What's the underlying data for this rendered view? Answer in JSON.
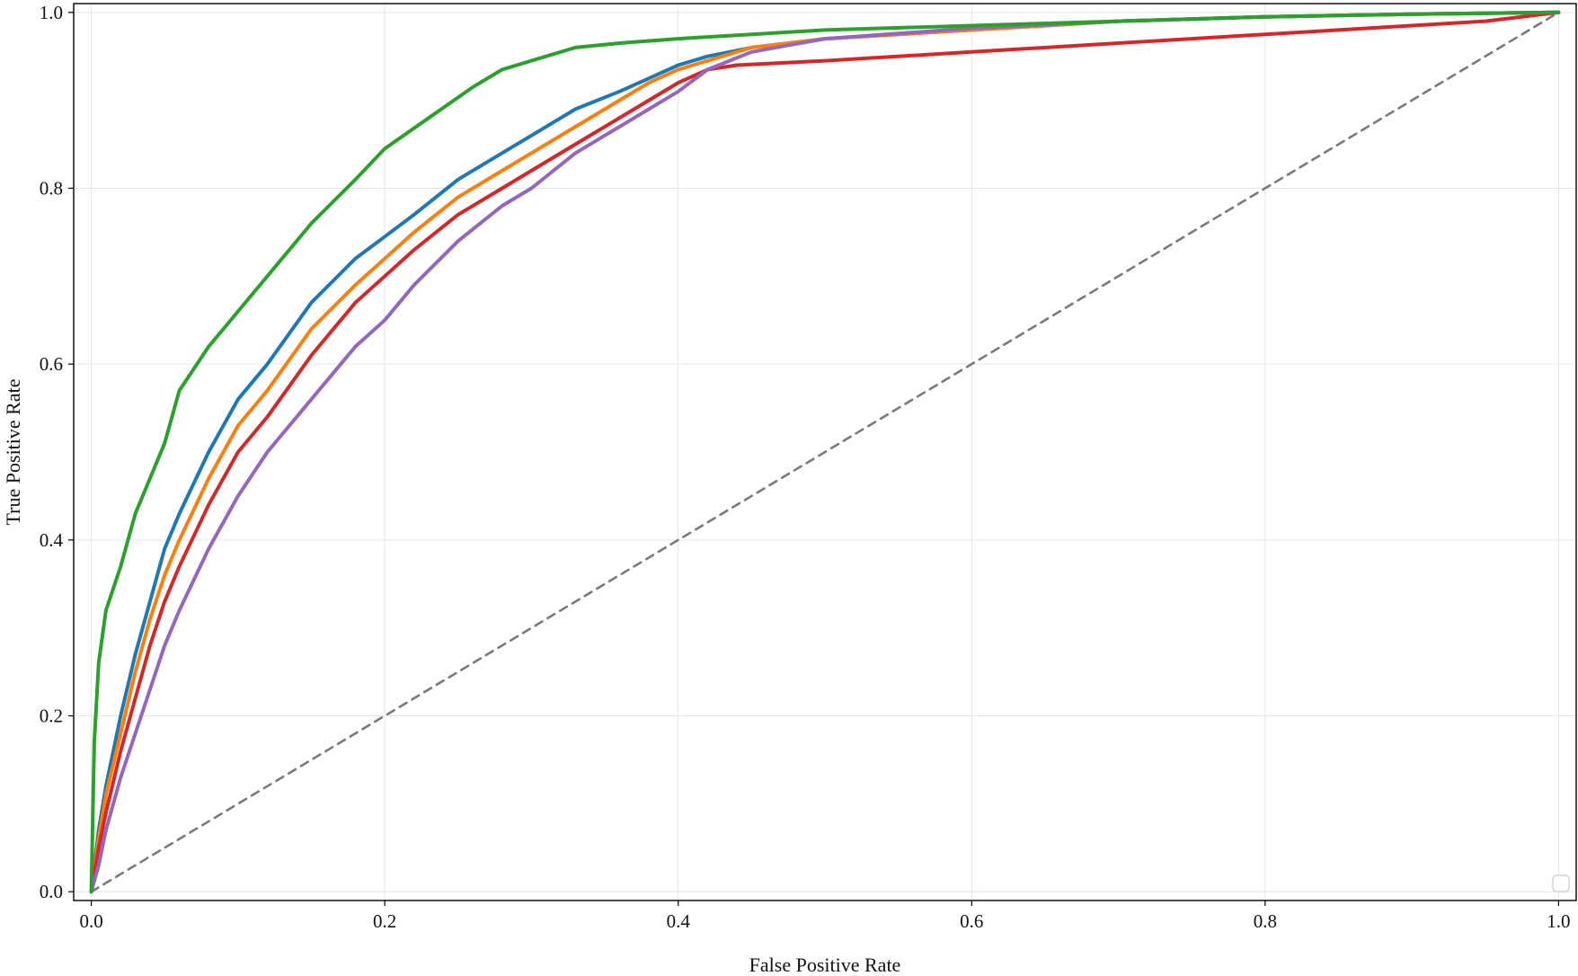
{
  "chart_data": {
    "type": "line",
    "title": "",
    "xlabel": "False Positive Rate",
    "ylabel": "True Positive Rate",
    "xlim": [
      -0.012,
      1.012
    ],
    "ylim": [
      -0.01,
      1.01
    ],
    "x_ticks": [
      "0.0",
      "0.2",
      "0.4",
      "0.6",
      "0.8",
      "1.0"
    ],
    "y_ticks": [
      "0.0",
      "0.2",
      "0.4",
      "0.6",
      "0.8",
      "1.0"
    ],
    "grid": true,
    "legend": "lower-right (empty)",
    "series": [
      {
        "color": "#1f77b4",
        "x": [
          0,
          0.005,
          0.01,
          0.02,
          0.03,
          0.04,
          0.05,
          0.06,
          0.08,
          0.1,
          0.12,
          0.15,
          0.18,
          0.2,
          0.22,
          0.25,
          0.28,
          0.3,
          0.33,
          0.36,
          0.38,
          0.4,
          0.42,
          0.45,
          0.5,
          0.6,
          0.7,
          0.8,
          0.9,
          1.0
        ],
        "y": [
          0,
          0.07,
          0.12,
          0.2,
          0.27,
          0.33,
          0.39,
          0.43,
          0.5,
          0.56,
          0.6,
          0.67,
          0.72,
          0.745,
          0.77,
          0.81,
          0.84,
          0.86,
          0.89,
          0.91,
          0.925,
          0.94,
          0.95,
          0.96,
          0.97,
          0.98,
          0.99,
          0.995,
          0.998,
          1.0
        ]
      },
      {
        "color": "#ff7f0e",
        "x": [
          0,
          0.005,
          0.01,
          0.02,
          0.03,
          0.04,
          0.05,
          0.06,
          0.08,
          0.1,
          0.12,
          0.15,
          0.18,
          0.2,
          0.22,
          0.25,
          0.28,
          0.3,
          0.33,
          0.36,
          0.38,
          0.4,
          0.42,
          0.45,
          0.5,
          0.6,
          0.7,
          0.8,
          0.9,
          1.0
        ],
        "y": [
          0,
          0.06,
          0.11,
          0.18,
          0.25,
          0.31,
          0.36,
          0.4,
          0.47,
          0.53,
          0.57,
          0.64,
          0.69,
          0.72,
          0.75,
          0.79,
          0.82,
          0.84,
          0.87,
          0.9,
          0.92,
          0.935,
          0.945,
          0.96,
          0.97,
          0.98,
          0.99,
          0.995,
          0.998,
          1.0
        ]
      },
      {
        "color": "#2ca02c",
        "x": [
          0,
          0.002,
          0.005,
          0.01,
          0.02,
          0.03,
          0.04,
          0.05,
          0.06,
          0.08,
          0.1,
          0.12,
          0.15,
          0.18,
          0.2,
          0.23,
          0.26,
          0.28,
          0.3,
          0.33,
          0.36,
          0.4,
          0.45,
          0.5,
          0.6,
          0.7,
          0.8,
          0.9,
          1.0
        ],
        "y": [
          0,
          0.17,
          0.26,
          0.32,
          0.37,
          0.43,
          0.47,
          0.51,
          0.57,
          0.62,
          0.66,
          0.7,
          0.76,
          0.81,
          0.845,
          0.88,
          0.915,
          0.935,
          0.945,
          0.96,
          0.965,
          0.97,
          0.975,
          0.98,
          0.985,
          0.99,
          0.995,
          0.998,
          1.0
        ]
      },
      {
        "color": "#d62728",
        "x": [
          0,
          0.005,
          0.01,
          0.02,
          0.03,
          0.04,
          0.05,
          0.06,
          0.08,
          0.1,
          0.12,
          0.15,
          0.18,
          0.2,
          0.22,
          0.25,
          0.28,
          0.3,
          0.33,
          0.36,
          0.38,
          0.4,
          0.42,
          0.44,
          0.5,
          0.6,
          0.7,
          0.8,
          0.9,
          0.95,
          1.0
        ],
        "y": [
          0,
          0.05,
          0.09,
          0.16,
          0.22,
          0.28,
          0.33,
          0.37,
          0.44,
          0.5,
          0.54,
          0.61,
          0.67,
          0.7,
          0.73,
          0.77,
          0.8,
          0.82,
          0.85,
          0.88,
          0.9,
          0.92,
          0.935,
          0.94,
          0.945,
          0.955,
          0.965,
          0.975,
          0.985,
          0.99,
          1.0
        ]
      },
      {
        "color": "#9467bd",
        "x": [
          0,
          0.005,
          0.01,
          0.02,
          0.03,
          0.04,
          0.05,
          0.06,
          0.08,
          0.1,
          0.12,
          0.15,
          0.18,
          0.2,
          0.22,
          0.25,
          0.28,
          0.3,
          0.33,
          0.36,
          0.38,
          0.4,
          0.42,
          0.45,
          0.5,
          0.6,
          0.7,
          0.8,
          0.9,
          1.0
        ],
        "y": [
          0,
          0.03,
          0.07,
          0.13,
          0.18,
          0.23,
          0.28,
          0.32,
          0.39,
          0.45,
          0.5,
          0.56,
          0.62,
          0.65,
          0.69,
          0.74,
          0.78,
          0.8,
          0.84,
          0.87,
          0.89,
          0.91,
          0.935,
          0.955,
          0.97,
          0.982,
          0.99,
          0.995,
          0.998,
          1.0
        ]
      },
      {
        "color": "#7a7a7a",
        "style": "dashed",
        "x": [
          0,
          1
        ],
        "y": [
          0,
          1
        ]
      }
    ]
  }
}
